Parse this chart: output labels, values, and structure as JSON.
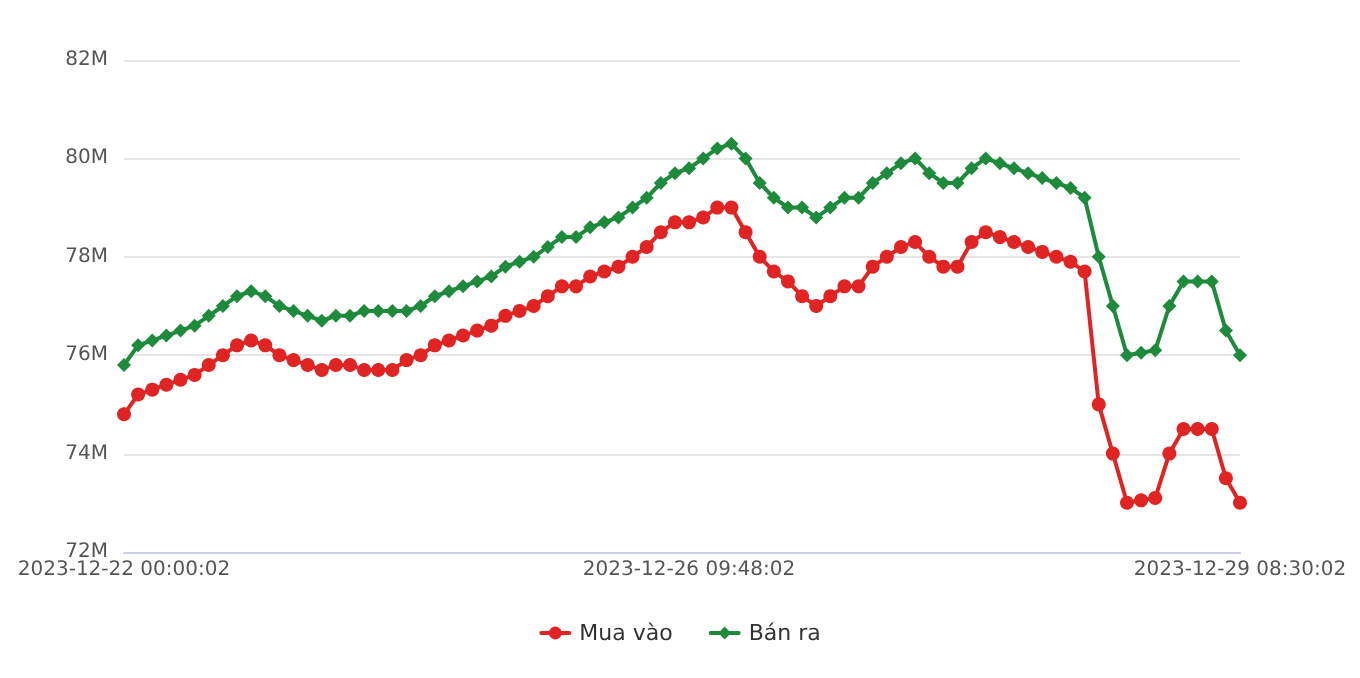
{
  "chart_data": {
    "type": "line",
    "categories": [
      "2023-12-22 00:00:02",
      null,
      null,
      null,
      null,
      null,
      null,
      null,
      null,
      null,
      null,
      null,
      null,
      null,
      null,
      null,
      null,
      null,
      null,
      null,
      null,
      null,
      null,
      null,
      null,
      null,
      null,
      null,
      null,
      null,
      null,
      null,
      null,
      null,
      null,
      null,
      null,
      null,
      null,
      null,
      "2023-12-26 09:48:02",
      null,
      null,
      null,
      null,
      null,
      null,
      null,
      null,
      null,
      null,
      null,
      null,
      null,
      null,
      null,
      null,
      null,
      null,
      null,
      null,
      null,
      null,
      null,
      null,
      null,
      null,
      null,
      null,
      null,
      null,
      null,
      null,
      null,
      null,
      null,
      null,
      null,
      null,
      "2023-12-29 08:30:02"
    ],
    "series": [
      {
        "name": "Mua vào",
        "color": "#e02424",
        "marker": "circle",
        "values": [
          74.8,
          75.2,
          75.3,
          75.4,
          75.5,
          75.6,
          75.8,
          76.0,
          76.2,
          76.3,
          76.2,
          76.0,
          75.9,
          75.8,
          75.7,
          75.8,
          75.8,
          75.7,
          75.7,
          75.7,
          75.9,
          76.0,
          76.2,
          76.3,
          76.4,
          76.5,
          76.6,
          76.8,
          76.9,
          77.0,
          77.2,
          77.4,
          77.4,
          77.6,
          77.7,
          77.8,
          78.0,
          78.2,
          78.5,
          78.7,
          78.7,
          78.8,
          79.0,
          79.0,
          78.5,
          78.0,
          77.7,
          77.5,
          77.2,
          77.0,
          77.2,
          77.4,
          77.4,
          77.8,
          78.0,
          78.2,
          78.3,
          78.0,
          77.8,
          77.8,
          78.3,
          78.5,
          78.4,
          78.3,
          78.2,
          78.1,
          78.0,
          77.9,
          77.7,
          75.0,
          74.0,
          73.0,
          73.05,
          73.1,
          74.0,
          74.5,
          74.5,
          74.5,
          73.5,
          73.0
        ]
      },
      {
        "name": "Bán ra",
        "color": "#1e8a3c",
        "marker": "diamond",
        "values": [
          75.8,
          76.2,
          76.3,
          76.4,
          76.5,
          76.6,
          76.8,
          77.0,
          77.2,
          77.3,
          77.2,
          77.0,
          76.9,
          76.8,
          76.7,
          76.8,
          76.8,
          76.9,
          76.9,
          76.9,
          76.9,
          77.0,
          77.2,
          77.3,
          77.4,
          77.5,
          77.6,
          77.8,
          77.9,
          78.0,
          78.2,
          78.4,
          78.4,
          78.6,
          78.7,
          78.8,
          79.0,
          79.2,
          79.5,
          79.7,
          79.8,
          80.0,
          80.2,
          80.3,
          80.0,
          79.5,
          79.2,
          79.0,
          79.0,
          78.8,
          79.0,
          79.2,
          79.2,
          79.5,
          79.7,
          79.9,
          80.0,
          79.7,
          79.5,
          79.5,
          79.8,
          80.0,
          79.9,
          79.8,
          79.7,
          79.6,
          79.5,
          79.4,
          79.2,
          78.0,
          77.0,
          76.0,
          76.05,
          76.1,
          77.0,
          77.5,
          77.5,
          77.5,
          76.5,
          76.0
        ]
      }
    ],
    "ylim": [
      72,
      82
    ],
    "yticks": [
      {
        "value": 72,
        "label": "72M"
      },
      {
        "value": 74,
        "label": "74M"
      },
      {
        "value": 76,
        "label": "76M"
      },
      {
        "value": 78,
        "label": "78M"
      },
      {
        "value": 80,
        "label": "80M"
      },
      {
        "value": 82,
        "label": "82M"
      }
    ],
    "grid": "y",
    "legend": "bottom",
    "line_style": "solid"
  }
}
